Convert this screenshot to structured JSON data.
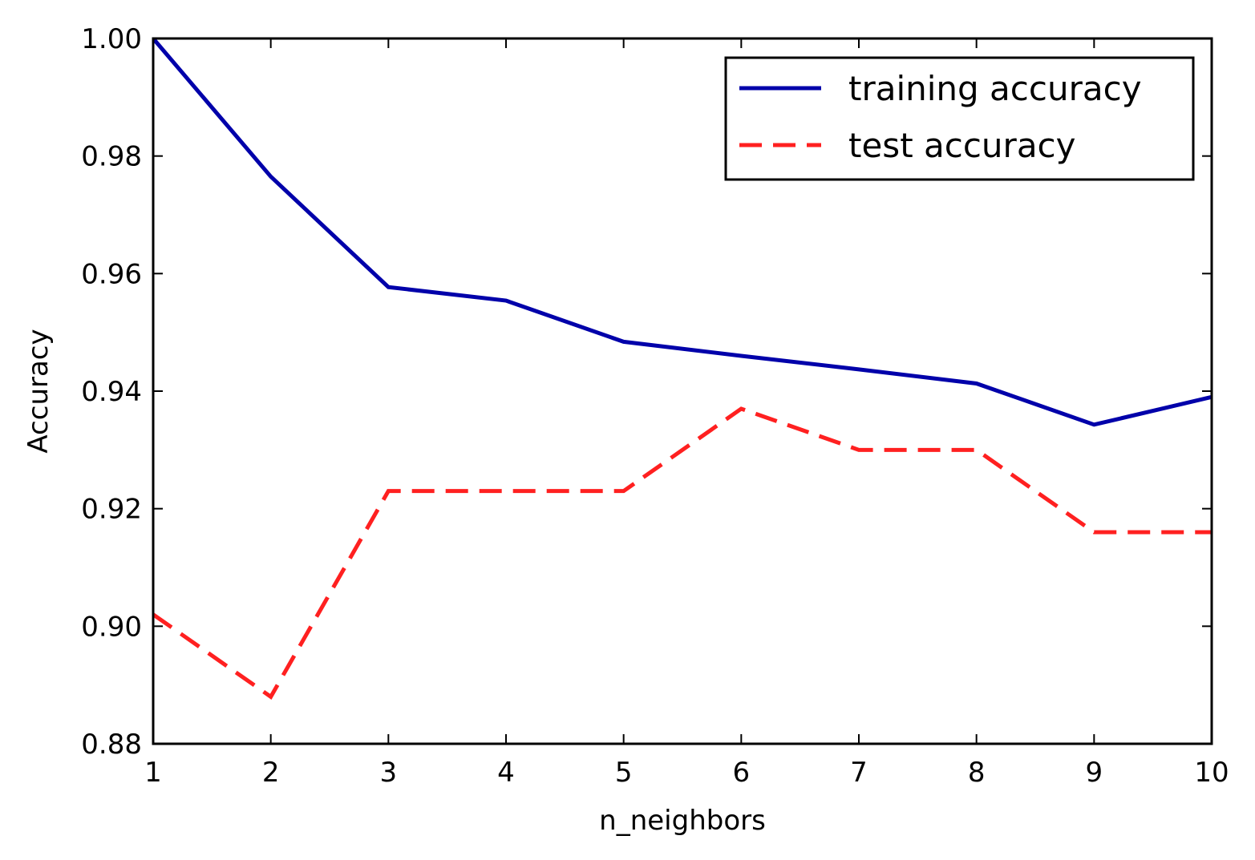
{
  "chart_data": {
    "type": "line",
    "title": "",
    "xlabel": "n_neighbors",
    "ylabel": "Accuracy",
    "x": [
      1,
      2,
      3,
      4,
      5,
      6,
      7,
      8,
      9,
      10
    ],
    "xlim": [
      1,
      10
    ],
    "ylim": [
      0.88,
      1.0
    ],
    "x_ticks": [
      1,
      2,
      3,
      4,
      5,
      6,
      7,
      8,
      9,
      10
    ],
    "x_tick_labels": [
      "1",
      "2",
      "3",
      "4",
      "5",
      "6",
      "7",
      "8",
      "9",
      "10"
    ],
    "y_ticks": [
      0.88,
      0.9,
      0.92,
      0.94,
      0.96,
      0.98,
      1.0
    ],
    "y_tick_labels": [
      "0.88",
      "0.90",
      "0.92",
      "0.94",
      "0.96",
      "0.98",
      "1.00"
    ],
    "grid": false,
    "legend_position": "top-right",
    "series": [
      {
        "name": "training accuracy",
        "color": "#0000aa",
        "style": "solid",
        "values": [
          1.0,
          0.9765,
          0.9577,
          0.9554,
          0.9484,
          0.946,
          0.9437,
          0.9413,
          0.9343,
          0.939
        ]
      },
      {
        "name": "test accuracy",
        "color": "#ff2020",
        "style": "dashed",
        "values": [
          0.902,
          0.888,
          0.923,
          0.923,
          0.923,
          0.937,
          0.93,
          0.93,
          0.916,
          0.916
        ]
      }
    ]
  }
}
